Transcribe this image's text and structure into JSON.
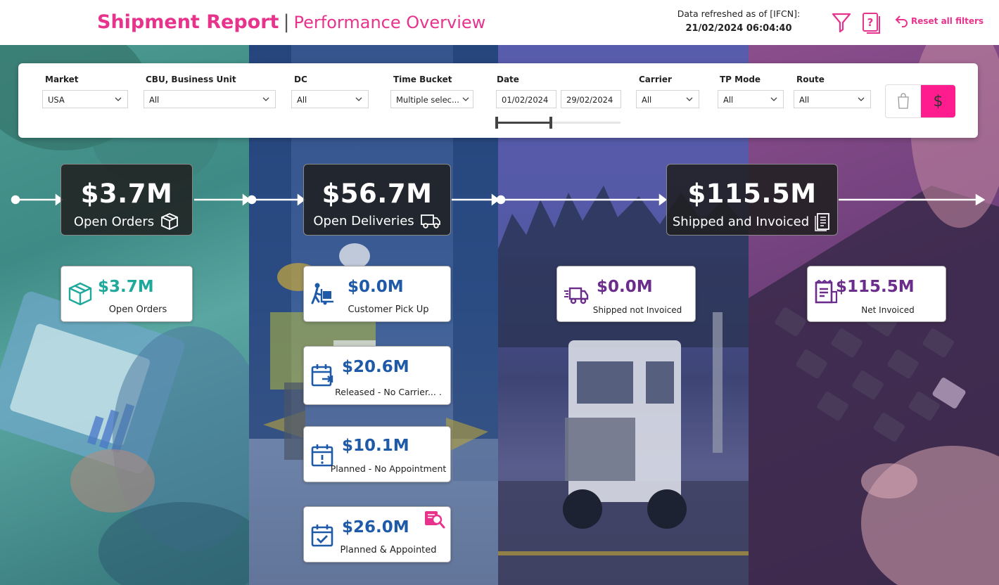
{
  "header": {
    "title": "Shipment Report",
    "separator": "|",
    "subtitle": "Performance Overview",
    "refresh_label": "Data refreshed as of [IFCN]:",
    "refresh_time": "21/02/2024 06:04:40",
    "reset_label": "Reset all filters",
    "colors": {
      "accent": "#e8338d"
    }
  },
  "filters": {
    "market": {
      "label": "Market",
      "value": "USA"
    },
    "cbu": {
      "label": "CBU, Business Unit",
      "value": "All"
    },
    "dc": {
      "label": "DC",
      "value": "All"
    },
    "time_bucket": {
      "label": "Time Bucket",
      "value": "Multiple selec..."
    },
    "date": {
      "label": "Date",
      "start": "01/02/2024",
      "end": "29/02/2024"
    },
    "carrier": {
      "label": "Carrier",
      "value": "All"
    },
    "tp_mode": {
      "label": "TP Mode",
      "value": "All"
    },
    "route": {
      "label": "Route",
      "value": "All"
    },
    "currency_toggle": {
      "dollar": "$"
    }
  },
  "kpis": {
    "open_orders": {
      "value": "$3.7M",
      "label": "Open Orders"
    },
    "open_deliveries": {
      "value": "$56.7M",
      "label": "Open Deliveries"
    },
    "shipped_invoiced": {
      "value": "$115.5M",
      "label": "Shipped and Invoiced"
    }
  },
  "cards": {
    "open_orders": {
      "value": "$3.7M",
      "label": "Open Orders"
    },
    "customer_pickup": {
      "value": "$0.0M",
      "label": "Customer Pick Up"
    },
    "released_no_carrier": {
      "value": "$20.6M",
      "label": "Released - No Carrier...   ."
    },
    "planned_no_appt": {
      "value": "$10.1M",
      "label": "Planned - No Appointment"
    },
    "planned_appointed": {
      "value": "$26.0M",
      "label": "Planned & Appointed"
    },
    "shipped_not_invoiced": {
      "value": "$0.0M",
      "label": "Shipped not Invoiced"
    },
    "net_invoiced": {
      "value": "$115.5M",
      "label": "Net Invoiced"
    }
  }
}
